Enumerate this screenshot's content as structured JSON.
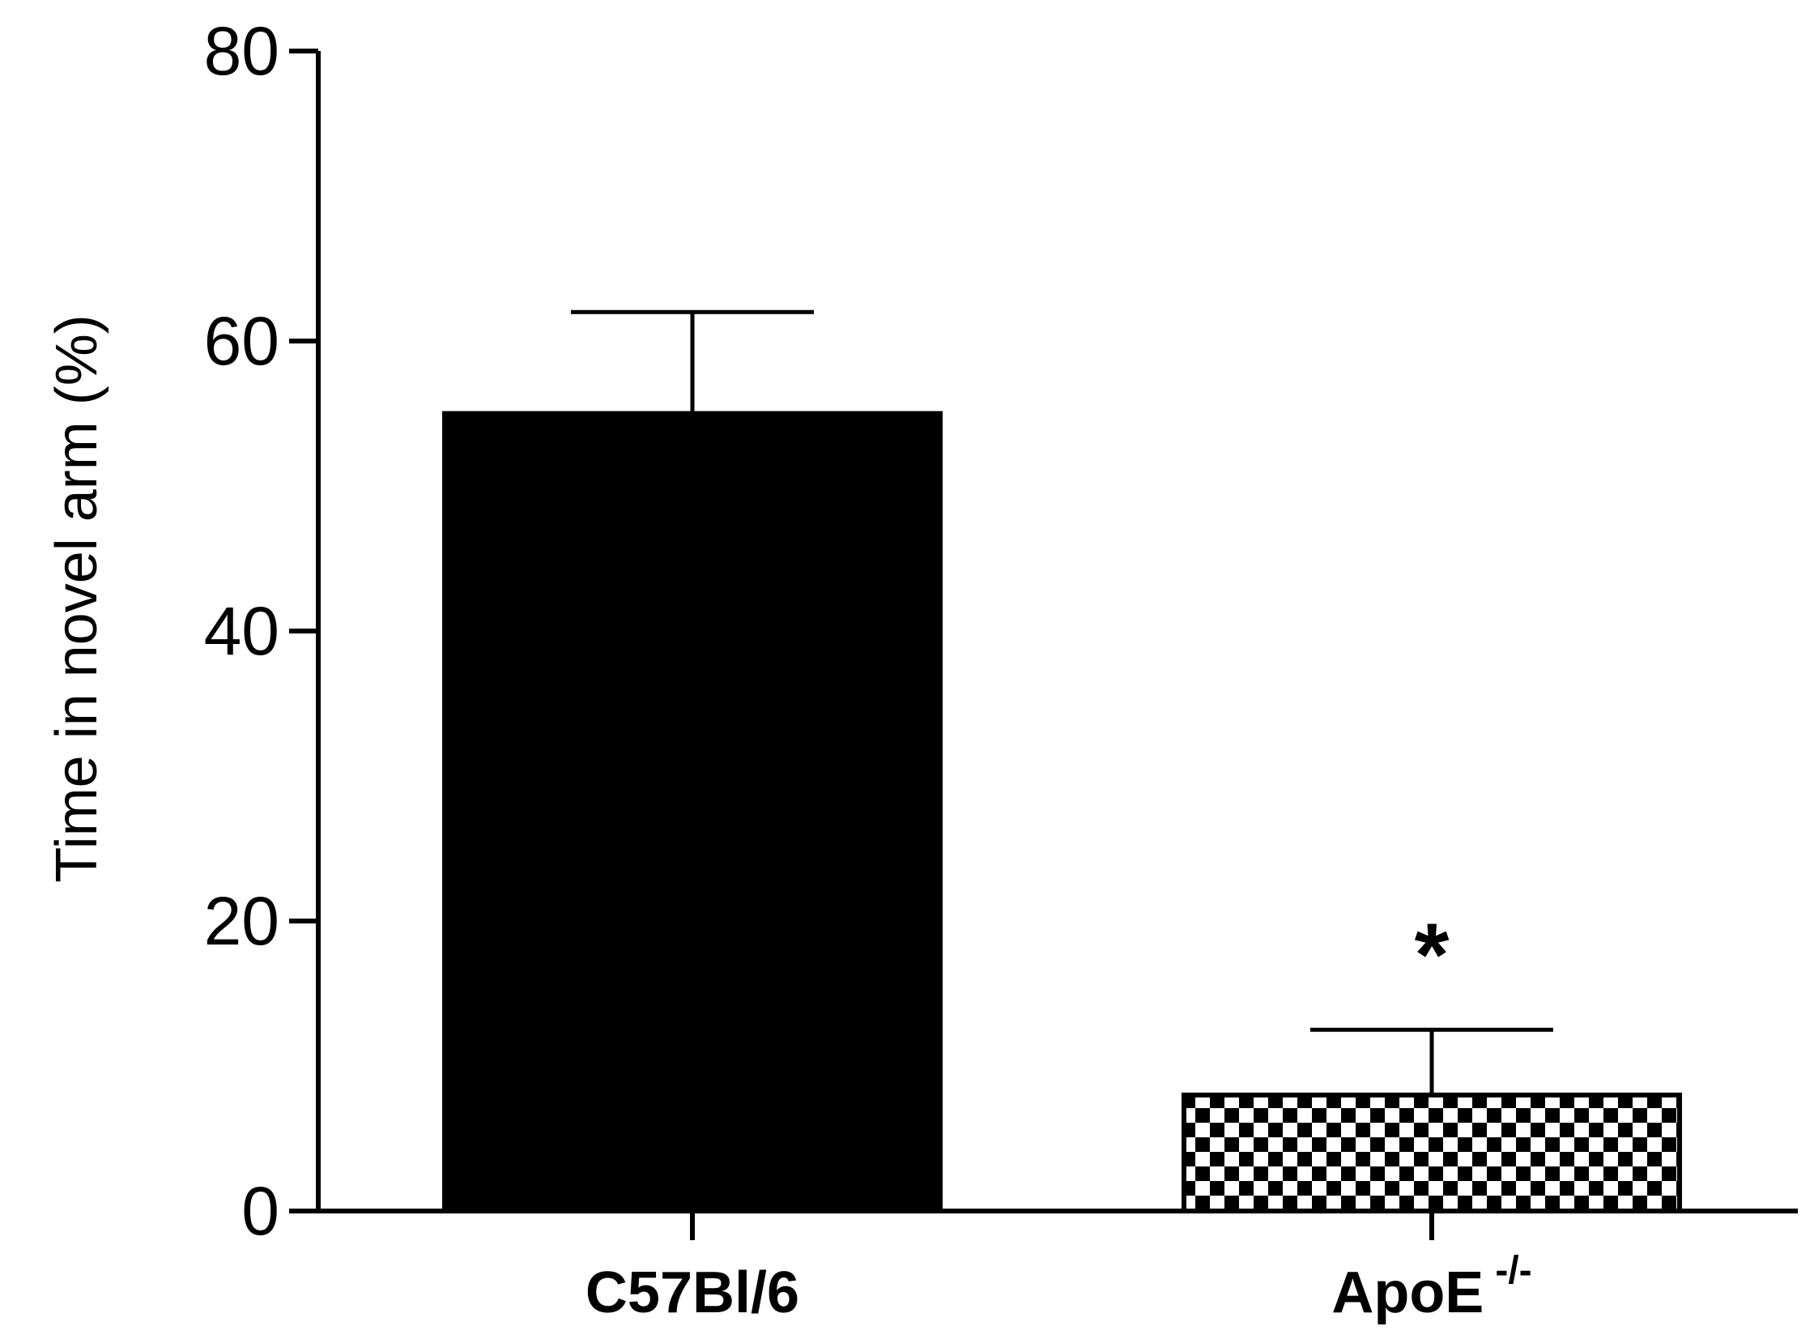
{
  "chart_data": {
    "type": "bar",
    "ylabel": "Time in novel arm (%)",
    "xlabel": "",
    "ylim": [
      0,
      80
    ],
    "yticks": [
      0,
      20,
      40,
      60,
      80
    ],
    "grid": false,
    "categories": [
      {
        "label": "C57Bl/6",
        "superscript": ""
      },
      {
        "label": "ApoE",
        "superscript": "-/-"
      }
    ],
    "values": [
      55,
      8
    ],
    "errors": [
      7,
      4.5
    ],
    "fills": [
      "solid",
      "checkerboard"
    ],
    "annotations": [
      {
        "category_index": 1,
        "text": "*"
      }
    ],
    "colors": {
      "bar": "#000000",
      "pattern_light": "#ffffff"
    }
  }
}
